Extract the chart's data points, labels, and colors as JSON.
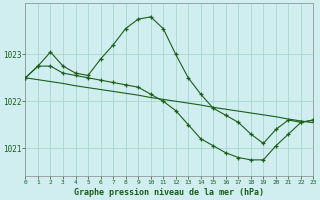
{
  "title": "Graphe pression niveau de la mer (hPa)",
  "bg_color": "#d0eef0",
  "grid_color": "#a8d8cc",
  "line_color": "#1a5e1a",
  "xlim": [
    0,
    23
  ],
  "ylim": [
    1020.4,
    1024.1
  ],
  "yticks": [
    1021,
    1022,
    1023
  ],
  "xticks": [
    0,
    1,
    2,
    3,
    4,
    5,
    6,
    7,
    8,
    9,
    10,
    11,
    12,
    13,
    14,
    15,
    16,
    17,
    18,
    19,
    20,
    21,
    22,
    23
  ],
  "series": [
    {
      "x": [
        0,
        1,
        2,
        3,
        4,
        5,
        6,
        7,
        8,
        9,
        10,
        11,
        12,
        13,
        14,
        15,
        16,
        17,
        18,
        19,
        20,
        21,
        22,
        23
      ],
      "y": [
        1022.5,
        1022.46,
        1022.42,
        1022.38,
        1022.33,
        1022.29,
        1022.25,
        1022.21,
        1022.17,
        1022.13,
        1022.08,
        1022.04,
        1022.0,
        1021.96,
        1021.92,
        1021.87,
        1021.83,
        1021.79,
        1021.75,
        1021.71,
        1021.67,
        1021.62,
        1021.58,
        1021.54
      ],
      "has_markers": false
    },
    {
      "x": [
        0,
        1,
        2,
        3,
        4,
        5,
        6,
        7,
        8,
        9,
        10,
        11,
        12,
        13,
        14,
        15,
        16,
        17,
        18,
        19,
        20,
        21,
        22,
        23
      ],
      "y": [
        1022.5,
        1022.75,
        1023.05,
        1022.75,
        1022.6,
        1022.55,
        1022.9,
        1023.2,
        1023.55,
        1023.75,
        1023.8,
        1023.55,
        1023.0,
        1022.5,
        1022.15,
        1021.85,
        1021.7,
        1021.55,
        1021.3,
        1021.1,
        1021.4,
        1021.6,
        1021.55,
        1021.6
      ],
      "has_markers": true
    },
    {
      "x": [
        0,
        1,
        2,
        3,
        4,
        5,
        6,
        7,
        8,
        9,
        10,
        11,
        12,
        13,
        14,
        15,
        16,
        17,
        18,
        19,
        20,
        21,
        22,
        23
      ],
      "y": [
        1022.5,
        1022.75,
        1022.75,
        1022.6,
        1022.55,
        1022.5,
        1022.45,
        1022.4,
        1022.35,
        1022.3,
        1022.15,
        1022.0,
        1021.8,
        1021.5,
        1021.2,
        1021.05,
        1020.9,
        1020.8,
        1020.75,
        1020.75,
        1021.05,
        1021.3,
        1021.55,
        1021.6
      ],
      "has_markers": true
    }
  ]
}
